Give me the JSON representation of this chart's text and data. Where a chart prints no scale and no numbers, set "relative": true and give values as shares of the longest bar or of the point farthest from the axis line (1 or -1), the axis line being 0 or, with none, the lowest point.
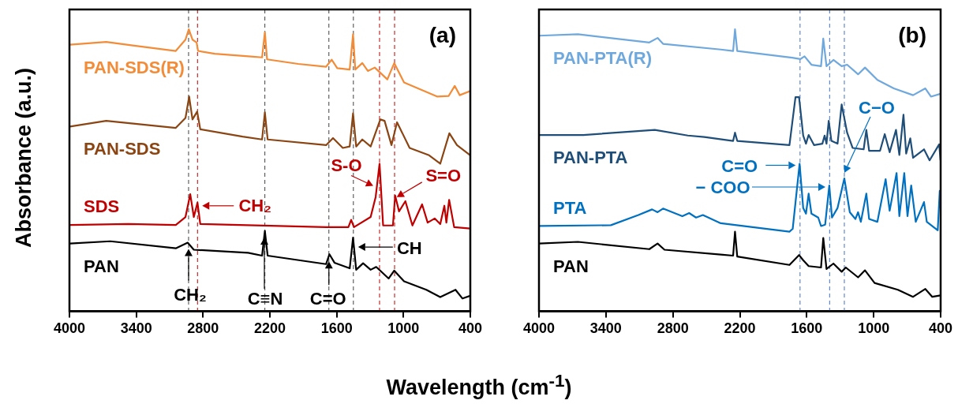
{
  "chart_data": [
    {
      "type": "line",
      "relative": true,
      "marker": "none",
      "line_style": "solid",
      "ylabel": "Absorbance (a.u.)",
      "xlabel": "Wavelength (cm$^{-1}$)",
      "xlim": [
        4000,
        400
      ],
      "xticks": [
        4000,
        3400,
        2800,
        2200,
        1600,
        1000,
        400
      ],
      "series": [
        {
          "name": "PAN-SDS(R)",
          "color": "#f28c38",
          "x": [
            3995,
            3670,
            3445,
            3045,
            2958,
            2928,
            2895,
            2858,
            2845,
            2695,
            2370,
            2270,
            2245,
            2225,
            1945,
            1695,
            1645,
            1595,
            1483,
            1453,
            1433,
            1370,
            1320,
            1258,
            1145,
            1083,
            995,
            845,
            695,
            595,
            540,
            495,
            400
          ],
          "values": [
            0.945,
            0.955,
            0.943,
            0.923,
            0.963,
            1.0,
            0.963,
            0.953,
            0.923,
            0.913,
            0.903,
            0.9,
            0.989,
            0.893,
            0.877,
            0.867,
            0.892,
            0.862,
            0.857,
            0.982,
            0.857,
            0.88,
            0.852,
            0.864,
            0.822,
            0.88,
            0.811,
            0.786,
            0.761,
            0.763,
            0.799,
            0.766,
            0.781
          ]
        },
        {
          "name": "PAN-SDS",
          "color": "#8b4513",
          "x": [
            3995,
            3670,
            3045,
            2958,
            2925,
            2895,
            2853,
            2825,
            2445,
            2270,
            2245,
            2220,
            1695,
            1633,
            1545,
            1483,
            1453,
            1425,
            1370,
            1295,
            1208,
            1170,
            1108,
            1058,
            945,
            770,
            670,
            588,
            520,
            400
          ],
          "values": [
            0.655,
            0.675,
            0.65,
            0.685,
            0.761,
            0.68,
            0.708,
            0.645,
            0.619,
            0.609,
            0.705,
            0.609,
            0.589,
            0.614,
            0.579,
            0.584,
            0.702,
            0.584,
            0.609,
            0.584,
            0.68,
            0.675,
            0.589,
            0.67,
            0.579,
            0.553,
            0.523,
            0.631,
            0.589,
            0.553
          ]
        },
        {
          "name": "SDS",
          "color": "#c00000",
          "x": [
            3995,
            3470,
            3045,
            2958,
            2915,
            2883,
            2850,
            2825,
            1695,
            1495,
            1470,
            1445,
            1295,
            1250,
            1215,
            1183,
            1095,
            1075,
            1040,
            983,
            920,
            833,
            783,
            720,
            670,
            633,
            615,
            590,
            545,
            400
          ],
          "values": [
            0.306,
            0.309,
            0.306,
            0.334,
            0.415,
            0.334,
            0.385,
            0.309,
            0.298,
            0.298,
            0.324,
            0.298,
            0.334,
            0.405,
            0.523,
            0.304,
            0.304,
            0.41,
            0.354,
            0.39,
            0.304,
            0.379,
            0.314,
            0.329,
            0.309,
            0.374,
            0.314,
            0.395,
            0.298,
            0.293
          ]
        },
        {
          "name": "PAN",
          "color": "#000000",
          "x": [
            3995,
            3633,
            3045,
            2938,
            2883,
            2395,
            2270,
            2245,
            2220,
            1695,
            1665,
            1620,
            1483,
            1453,
            1425,
            1363,
            1295,
            1245,
            1133,
            1083,
            995,
            795,
            670,
            533,
            470,
            400
          ],
          "values": [
            0.24,
            0.248,
            0.223,
            0.243,
            0.218,
            0.207,
            0.197,
            0.285,
            0.197,
            0.167,
            0.202,
            0.172,
            0.152,
            0.261,
            0.147,
            0.17,
            0.147,
            0.157,
            0.116,
            0.144,
            0.106,
            0.076,
            0.05,
            0.076,
            0.045,
            0.055
          ]
        }
      ],
      "ref_lines": [
        {
          "axis": "x",
          "value": 2930,
          "color": "#404040",
          "line_style": "dashed"
        },
        {
          "axis": "x",
          "value": 2850,
          "color": "#c00000",
          "line_style": "dashed"
        },
        {
          "axis": "x",
          "value": 2245,
          "color": "#404040",
          "line_style": "dashed"
        },
        {
          "axis": "x",
          "value": 1670,
          "color": "#404040",
          "line_style": "dashed"
        },
        {
          "axis": "x",
          "value": 1450,
          "color": "#404040",
          "line_style": "dashed"
        },
        {
          "axis": "x",
          "value": 1215,
          "color": "#c00000",
          "line_style": "dashed"
        },
        {
          "axis": "x",
          "value": 1080,
          "color": "#c00000",
          "line_style": "dashed"
        }
      ],
      "annotations": [
        "(a)",
        {
          "text": "CH₂",
          "x": 2850,
          "y": 0.385
        },
        {
          "text": "CH₂",
          "x": 2930,
          "y": 0.243
        },
        "C≡N",
        {
          "text": "C=O",
          "x": 1670,
          "y": 0.202
        },
        {
          "text": "CH",
          "x": 1450,
          "y": 0.261
        },
        {
          "text": "S-O",
          "x": 1215,
          "y": 0.523
        },
        {
          "text": "S=O",
          "x": 1075,
          "y": 0.41
        }
      ]
    },
    {
      "type": "line",
      "relative": true,
      "marker": "none",
      "line_style": "solid",
      "xlim": [
        4000,
        400
      ],
      "xticks": [
        4000,
        3400,
        2800,
        2200,
        1600,
        1000,
        400
      ],
      "series": [
        {
          "name": "PAN-PTA(R)",
          "color": "#6fa8dc",
          "x": [
            4000,
            3651,
            3011,
            2937,
            2888,
            2371,
            2260,
            2243,
            2223,
            1730,
            1657,
            1620,
            1558,
            1472,
            1452,
            1423,
            1361,
            1287,
            1238,
            1140,
            1078,
            967,
            820,
            647,
            537,
            487,
            401
          ],
          "values": [
            0.977,
            0.982,
            0.953,
            0.969,
            0.948,
            0.928,
            0.923,
            1.0,
            0.923,
            0.899,
            0.894,
            0.904,
            0.874,
            0.869,
            0.967,
            0.869,
            0.891,
            0.869,
            0.874,
            0.84,
            0.864,
            0.82,
            0.79,
            0.766,
            0.79,
            0.761,
            0.771
          ]
        },
        {
          "name": "PAN-PTA",
          "color": "#1f4e79",
          "x": [
            4000,
            3602,
            2962,
            2666,
            2518,
            2260,
            2243,
            2223,
            1755,
            1701,
            1669,
            1632,
            1607,
            1583,
            1534,
            1460,
            1440,
            1423,
            1403,
            1379,
            1324,
            1287,
            1238,
            1189,
            1090,
            1066,
            1041,
            943,
            901,
            857,
            800,
            770,
            733,
            709,
            672,
            647,
            549,
            499,
            413,
            401
          ],
          "values": [
            0.625,
            0.625,
            0.643,
            0.623,
            0.618,
            0.604,
            0.633,
            0.604,
            0.589,
            0.759,
            0.759,
            0.623,
            0.594,
            0.625,
            0.589,
            0.594,
            0.623,
            0.594,
            0.675,
            0.604,
            0.594,
            0.733,
            0.633,
            0.579,
            0.574,
            0.643,
            0.569,
            0.569,
            0.628,
            0.564,
            0.643,
            0.554,
            0.697,
            0.559,
            0.613,
            0.544,
            0.574,
            0.535,
            0.592,
            0.535
          ]
        },
        {
          "name": "PTA",
          "color": "#0070c0",
          "x": [
            4000,
            3355,
            3109,
            2986,
            2937,
            2888,
            2715,
            2654,
            2592,
            2531,
            2371,
            1755,
            1726,
            1664,
            1632,
            1607,
            1583,
            1558,
            1497,
            1472,
            1435,
            1398,
            1374,
            1324,
            1263,
            1214,
            1164,
            1140,
            1115,
            1066,
            1041,
            967,
            893,
            857,
            795,
            770,
            726,
            697,
            664,
            623,
            549,
            524,
            426,
            408,
            401
          ],
          "values": [
            0.302,
            0.305,
            0.341,
            0.361,
            0.351,
            0.364,
            0.337,
            0.348,
            0.332,
            0.341,
            0.312,
            0.282,
            0.292,
            0.523,
            0.366,
            0.346,
            0.417,
            0.346,
            0.332,
            0.302,
            0.307,
            0.446,
            0.332,
            0.366,
            0.471,
            0.351,
            0.327,
            0.351,
            0.317,
            0.417,
            0.327,
            0.317,
            0.468,
            0.356,
            0.49,
            0.337,
            0.49,
            0.337,
            0.446,
            0.317,
            0.387,
            0.317,
            0.287,
            0.427,
            0.366
          ]
        },
        {
          "name": "PAN",
          "color": "#000000",
          "x": [
            4000,
            3651,
            3011,
            2937,
            2875,
            2371,
            2260,
            2243,
            2223,
            1755,
            1669,
            1632,
            1583,
            1472,
            1452,
            1423,
            1361,
            1287,
            1250,
            1140,
            1078,
            992,
            783,
            647,
            537,
            475,
            401
          ],
          "values": [
            0.24,
            0.246,
            0.22,
            0.24,
            0.218,
            0.201,
            0.197,
            0.282,
            0.194,
            0.164,
            0.199,
            0.181,
            0.16,
            0.155,
            0.26,
            0.15,
            0.169,
            0.14,
            0.155,
            0.12,
            0.145,
            0.1,
            0.076,
            0.051,
            0.079,
            0.051,
            0.056
          ]
        }
      ],
      "ref_lines": [
        {
          "axis": "x",
          "value": 1660,
          "color": "#4472c4",
          "line_style": "dashed"
        },
        {
          "axis": "x",
          "value": 1395,
          "color": "#4472c4",
          "line_style": "dashed"
        },
        {
          "axis": "x",
          "value": 1263,
          "color": "#4472c4",
          "line_style": "dashed"
        }
      ],
      "annotations": [
        "(b)",
        {
          "text": "C=O",
          "x": 1664,
          "y": 0.523
        },
        "− COO",
        "C−O"
      ]
    }
  ]
}
